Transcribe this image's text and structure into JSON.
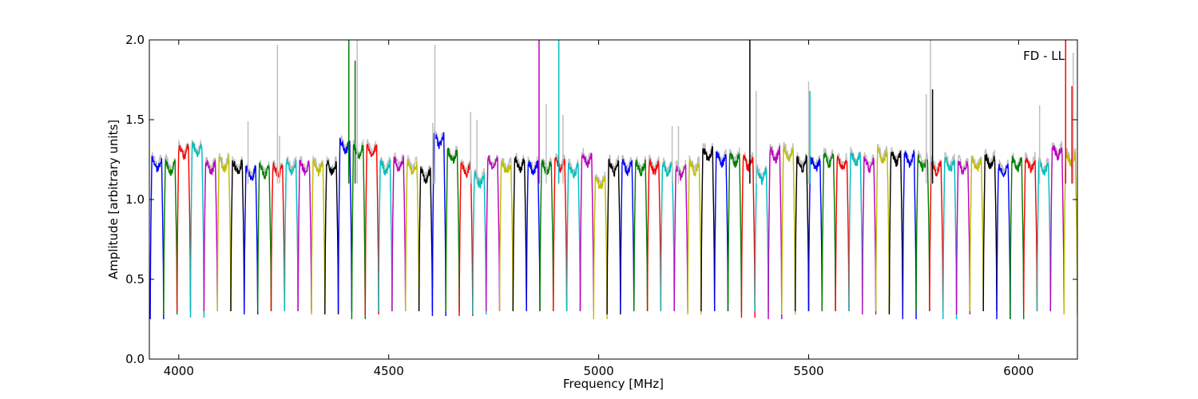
{
  "chart_data": {
    "type": "line",
    "title": "",
    "xlabel": "Frequency [MHz]",
    "ylabel": "Amplitude [arbitrary units]",
    "annotation": "FD - LL",
    "xlim": [
      3930,
      6140
    ],
    "ylim": [
      0.0,
      2.0
    ],
    "xticks": [
      4000,
      4500,
      5000,
      5500,
      6000
    ],
    "yticks": [
      0.0,
      0.5,
      1.0,
      1.5,
      2.0
    ],
    "xtick_labels": [
      "4000",
      "4500",
      "5000",
      "5500",
      "6000"
    ],
    "ytick_labels": [
      "0.0",
      "0.5",
      "1.0",
      "1.5",
      "2.0"
    ],
    "grid": false,
    "legend": "none",
    "background_color": "#bfbfbf",
    "color_cycle": [
      "#0000ff",
      "#008000",
      "#ff0000",
      "#00bfbf",
      "#bf00bf",
      "#bfbf00",
      "#000000"
    ],
    "channel_width_mhz": 32,
    "channel_start_mhz": 3932,
    "channel_count": 69,
    "channel_levels": [
      1.22,
      1.2,
      1.3,
      1.31,
      1.2,
      1.22,
      1.2,
      1.16,
      1.18,
      1.18,
      1.2,
      1.2,
      1.2,
      1.2,
      1.33,
      1.3,
      1.3,
      1.2,
      1.22,
      1.2,
      1.15,
      1.37,
      1.27,
      1.19,
      1.12,
      1.22,
      1.2,
      1.22,
      1.2,
      1.2,
      1.22,
      1.18,
      1.25,
      1.1,
      1.2,
      1.2,
      1.2,
      1.2,
      1.19,
      1.17,
      1.2,
      1.28,
      1.25,
      1.25,
      1.23,
      1.15,
      1.28,
      1.28,
      1.22,
      1.22,
      1.25,
      1.22,
      1.25,
      1.22,
      1.27,
      1.26,
      1.25,
      1.23,
      1.2,
      1.22,
      1.2,
      1.22,
      1.24,
      1.18,
      1.22,
      1.22,
      1.2,
      1.3,
      1.25
    ],
    "channel_minima": [
      0.25,
      0.28,
      0.3,
      0.26,
      0.3,
      0.3,
      0.3,
      0.28,
      0.3,
      0.3,
      0.3,
      0.3,
      0.28,
      0.28,
      0.3,
      0.25,
      0.28,
      0.3,
      0.3,
      0.3,
      0.3,
      0.27,
      0.3,
      0.27,
      0.28,
      0.3,
      0.3,
      0.3,
      0.3,
      0.3,
      0.3,
      0.3,
      0.3,
      0.25,
      0.28,
      0.3,
      0.3,
      0.3,
      0.3,
      0.3,
      0.28,
      0.3,
      0.3,
      0.3,
      0.26,
      0.3,
      0.25,
      0.28,
      0.3,
      0.3,
      0.3,
      0.3,
      0.3,
      0.28,
      0.3,
      0.28,
      0.25,
      0.3,
      0.3,
      0.25,
      0.28,
      0.3,
      0.3,
      0.25,
      0.25,
      0.3,
      0.3,
      0.3,
      0.28
    ],
    "series_note": "one trace per channel, colors cycle through color_cycle; grey trace drawn behind",
    "spikes": [
      {
        "x": 4235,
        "y": 1.97,
        "color": "#bfbfbf"
      },
      {
        "x": 4165,
        "y": 1.49,
        "color": "#bfbfbf"
      },
      {
        "x": 4240,
        "y": 1.4,
        "color": "#bfbfbf"
      },
      {
        "x": 4405,
        "y": 2.0,
        "color": "#008000"
      },
      {
        "x": 4420,
        "y": 1.87,
        "color": "#008000"
      },
      {
        "x": 4425,
        "y": 2.0,
        "color": "#bfbfbf"
      },
      {
        "x": 4610,
        "y": 1.97,
        "color": "#bfbfbf"
      },
      {
        "x": 4605,
        "y": 1.48,
        "color": "#bfbfbf"
      },
      {
        "x": 4695,
        "y": 1.55,
        "color": "#bfbfbf"
      },
      {
        "x": 4710,
        "y": 1.5,
        "color": "#bfbfbf"
      },
      {
        "x": 4858,
        "y": 2.0,
        "color": "#bf00bf"
      },
      {
        "x": 4875,
        "y": 1.6,
        "color": "#bfbfbf"
      },
      {
        "x": 4905,
        "y": 2.0,
        "color": "#00bfbf"
      },
      {
        "x": 4915,
        "y": 1.53,
        "color": "#bfbfbf"
      },
      {
        "x": 5175,
        "y": 1.46,
        "color": "#bfbfbf"
      },
      {
        "x": 5190,
        "y": 1.46,
        "color": "#bfbfbf"
      },
      {
        "x": 5360,
        "y": 2.0,
        "color": "#000000"
      },
      {
        "x": 5375,
        "y": 1.68,
        "color": "#bfbfbf"
      },
      {
        "x": 5500,
        "y": 1.74,
        "color": "#bfbfbf"
      },
      {
        "x": 5503,
        "y": 1.68,
        "color": "#00bfbf"
      },
      {
        "x": 5790,
        "y": 2.0,
        "color": "#bfbfbf"
      },
      {
        "x": 5795,
        "y": 1.69,
        "color": "#000000"
      },
      {
        "x": 5780,
        "y": 1.66,
        "color": "#bfbfbf"
      },
      {
        "x": 6050,
        "y": 1.59,
        "color": "#bfbfbf"
      },
      {
        "x": 6112,
        "y": 2.0,
        "color": "#ff0000"
      },
      {
        "x": 6130,
        "y": 1.92,
        "color": "#bfbfbf"
      },
      {
        "x": 6127,
        "y": 1.71,
        "color": "#ff0000"
      }
    ]
  }
}
